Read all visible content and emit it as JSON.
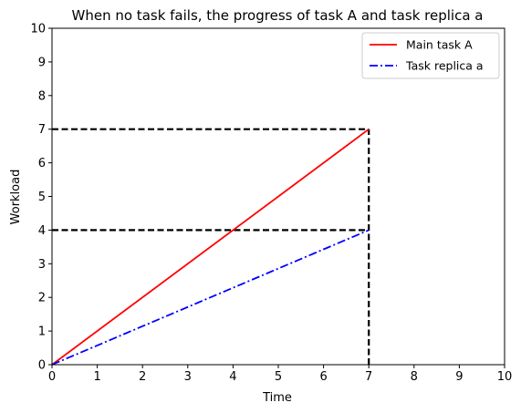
{
  "chart_data": {
    "type": "line",
    "title": "When no task fails, the progress of task A and task replica a",
    "xlabel": "Time",
    "ylabel": "Workload",
    "xlim": [
      0,
      10
    ],
    "ylim": [
      0,
      10
    ],
    "xticks": [
      "0",
      "1",
      "2",
      "3",
      "4",
      "5",
      "6",
      "7",
      "8",
      "9",
      "10"
    ],
    "yticks": [
      "0",
      "1",
      "2",
      "3",
      "4",
      "5",
      "6",
      "7",
      "8",
      "9",
      "10"
    ],
    "grid": false,
    "legend_position": "upper-right",
    "series": [
      {
        "name": "Main task A",
        "x": [
          0,
          7
        ],
        "y": [
          0,
          7
        ],
        "color": "#ff0000",
        "style": "solid"
      },
      {
        "name": "Task replica a",
        "x": [
          0,
          7
        ],
        "y": [
          0,
          4
        ],
        "color": "#0000ff",
        "style": "dash-dot"
      }
    ],
    "reference_lines": [
      {
        "x": [
          0,
          7
        ],
        "y": [
          7,
          7
        ],
        "color": "#000000",
        "style": "dashed"
      },
      {
        "x": [
          0,
          7
        ],
        "y": [
          4,
          4
        ],
        "color": "#000000",
        "style": "dashed"
      },
      {
        "x": [
          7,
          7
        ],
        "y": [
          0,
          7
        ],
        "color": "#000000",
        "style": "dashed"
      }
    ]
  }
}
